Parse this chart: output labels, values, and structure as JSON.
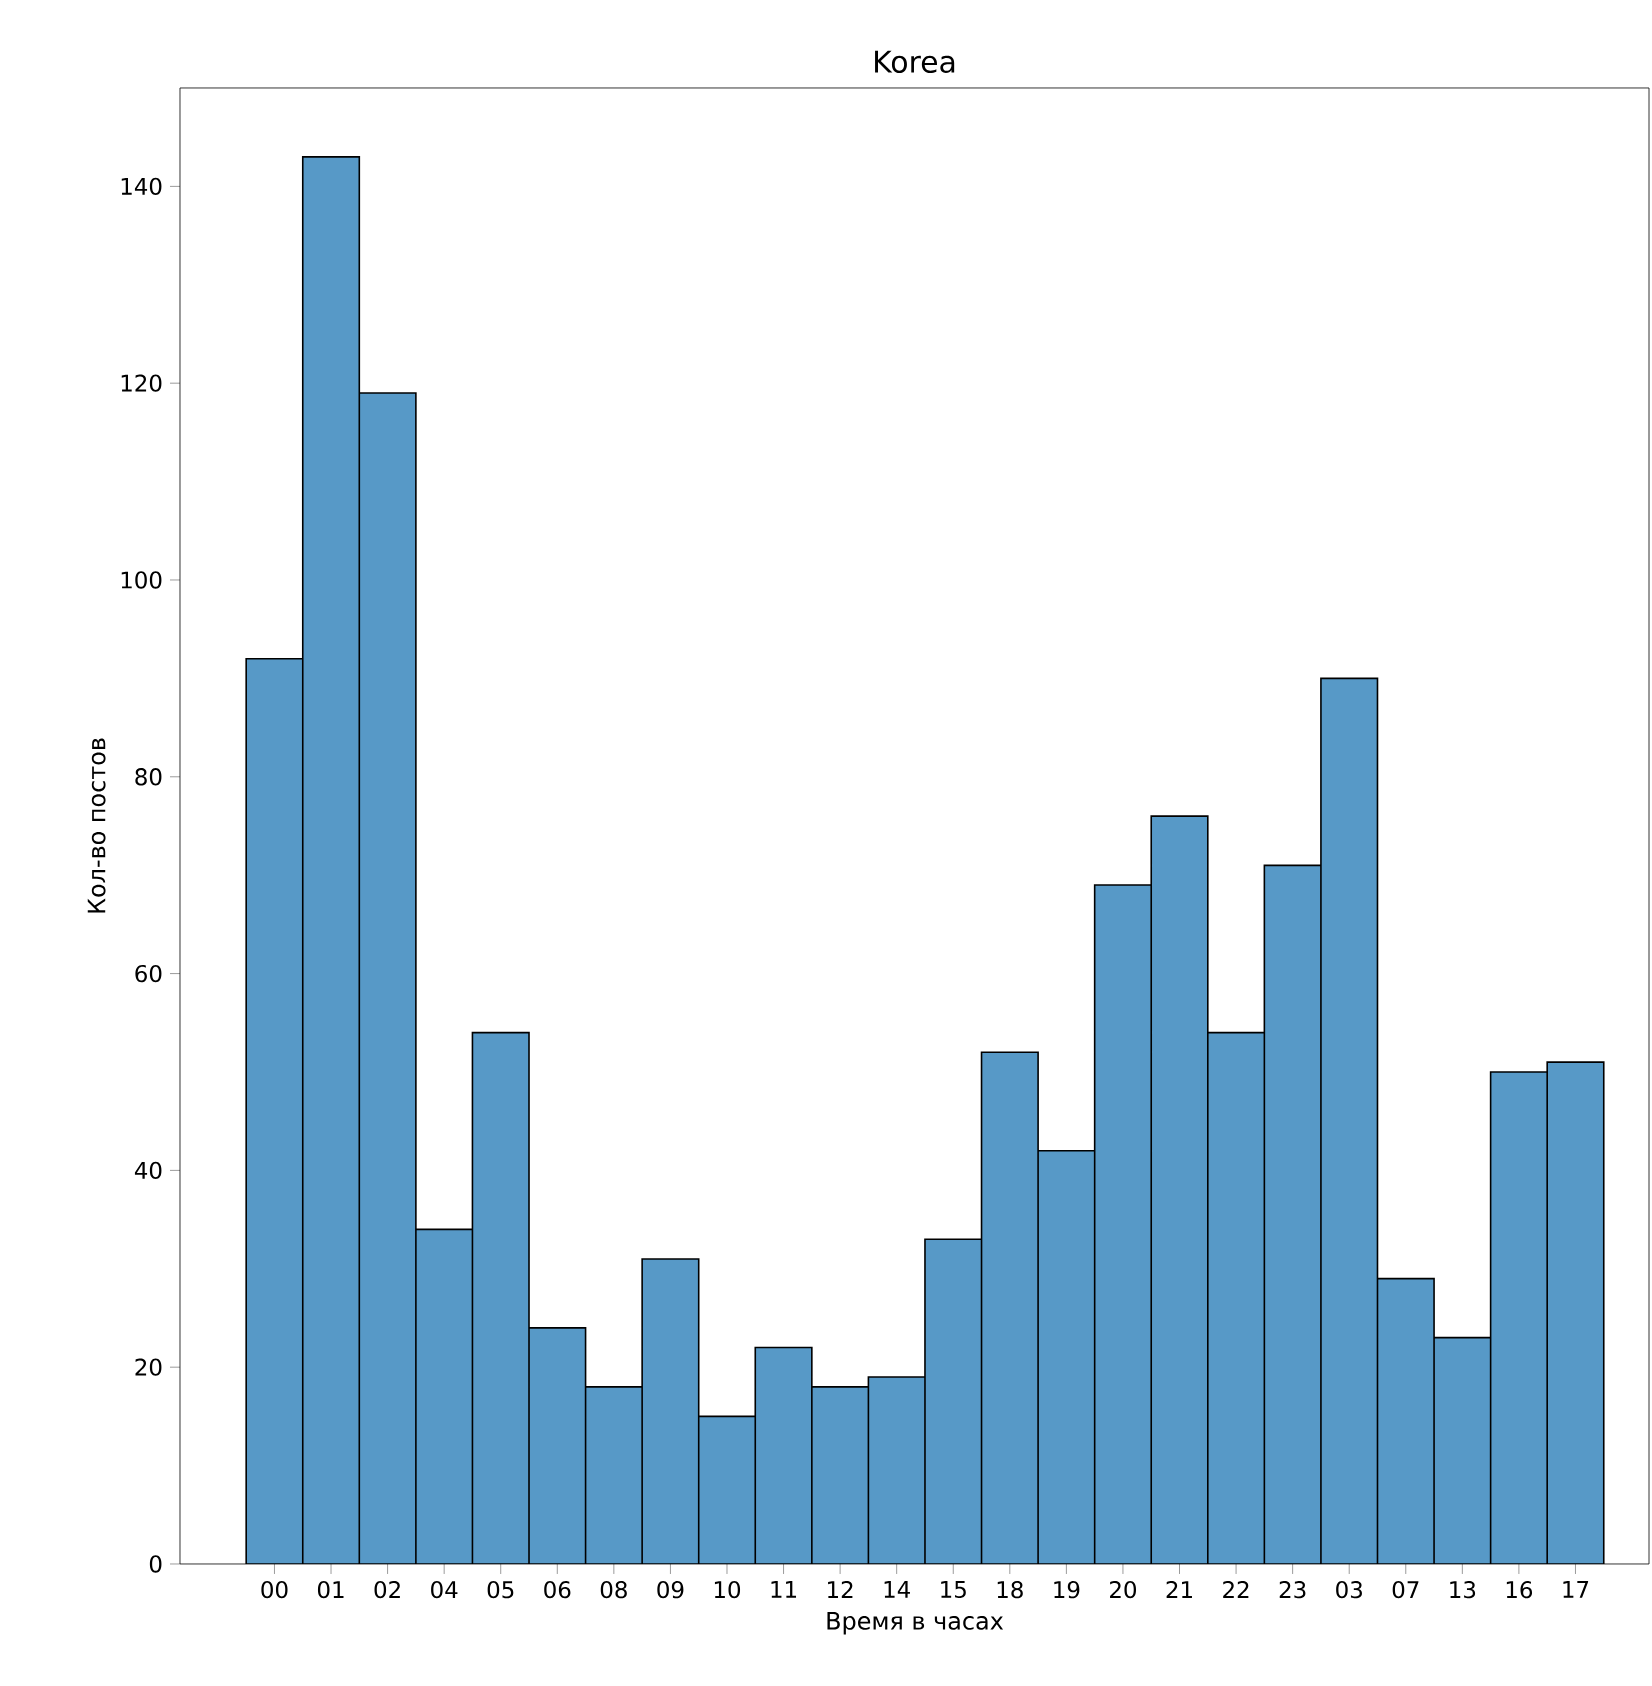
{
  "chart_data": {
    "type": "bar",
    "title": "Korea",
    "xlabel": "Время в часах",
    "ylabel": "Кол-во постов",
    "categories": [
      "00",
      "01",
      "02",
      "04",
      "05",
      "06",
      "08",
      "09",
      "10",
      "11",
      "12",
      "14",
      "15",
      "18",
      "19",
      "20",
      "21",
      "22",
      "23",
      "03",
      "07",
      "13",
      "16",
      "17"
    ],
    "values": [
      92,
      143,
      119,
      34,
      54,
      24,
      18,
      31,
      15,
      22,
      18,
      19,
      33,
      52,
      42,
      69,
      76,
      54,
      71,
      90,
      29,
      23,
      50,
      51
    ],
    "color": "#5799c7",
    "ylim": [
      0,
      150
    ],
    "yticks": [
      0,
      20,
      40,
      60,
      80,
      100,
      120,
      140
    ],
    "grid": false
  }
}
